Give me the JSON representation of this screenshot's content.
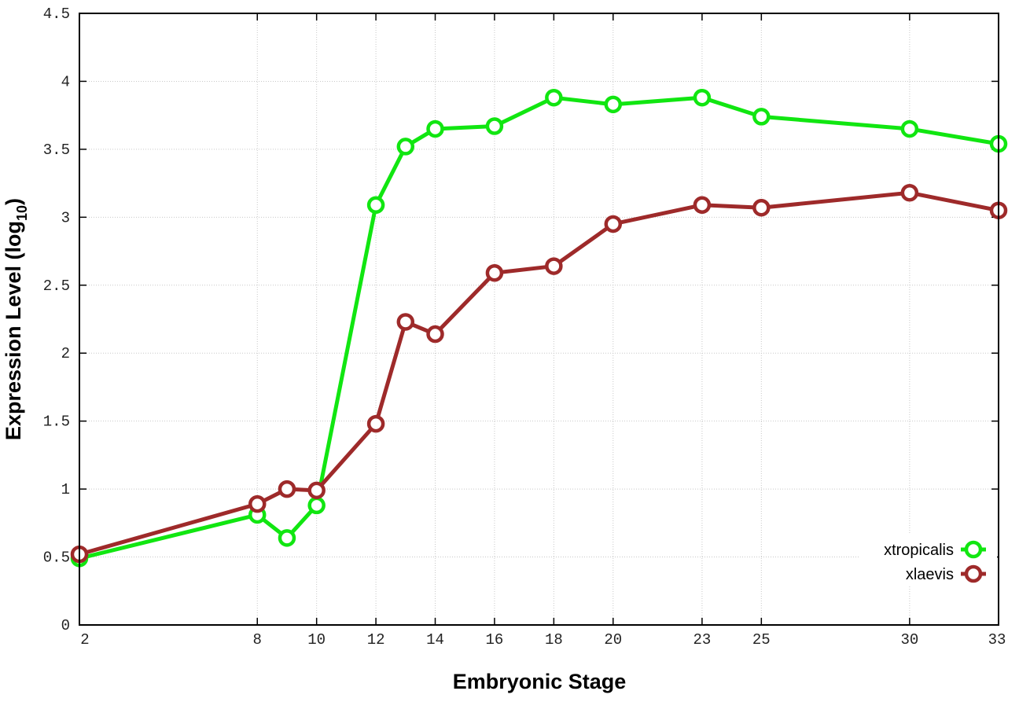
{
  "chart_data": {
    "type": "line",
    "xlabel": "Embryonic Stage",
    "ylabel": "Expression Level (log",
    "ylabel_sub": "10",
    "ylabel_end": ")",
    "xlim": [
      2,
      33
    ],
    "ylim": [
      0,
      4.5
    ],
    "x_ticks": [
      2,
      8,
      10,
      12,
      14,
      16,
      18,
      20,
      23,
      25,
      30,
      33
    ],
    "y_ticks": [
      0,
      0.5,
      1,
      1.5,
      2,
      2.5,
      3,
      3.5,
      4,
      4.5
    ],
    "y_tick_labels": [
      "0",
      "0.5",
      "1",
      "1.5",
      "2",
      "2.5",
      "3",
      "3.5",
      "4",
      "4.5"
    ],
    "grid": true,
    "legend_position": "bottom-right",
    "x": [
      2,
      8,
      9,
      10,
      12,
      13,
      14,
      16,
      18,
      20,
      23,
      25,
      30,
      33
    ],
    "series": [
      {
        "name": "xtropicalis",
        "color": "#11e611",
        "values": [
          0.49,
          0.81,
          0.64,
          0.88,
          3.09,
          3.52,
          3.65,
          3.67,
          3.88,
          3.83,
          3.88,
          3.74,
          3.65,
          3.54
        ]
      },
      {
        "name": "xlaevis",
        "color": "#9e2a2a",
        "values": [
          0.52,
          0.89,
          1.0,
          0.99,
          1.48,
          2.23,
          2.14,
          2.59,
          2.64,
          2.95,
          3.09,
          3.07,
          3.18,
          3.05
        ]
      }
    ]
  }
}
